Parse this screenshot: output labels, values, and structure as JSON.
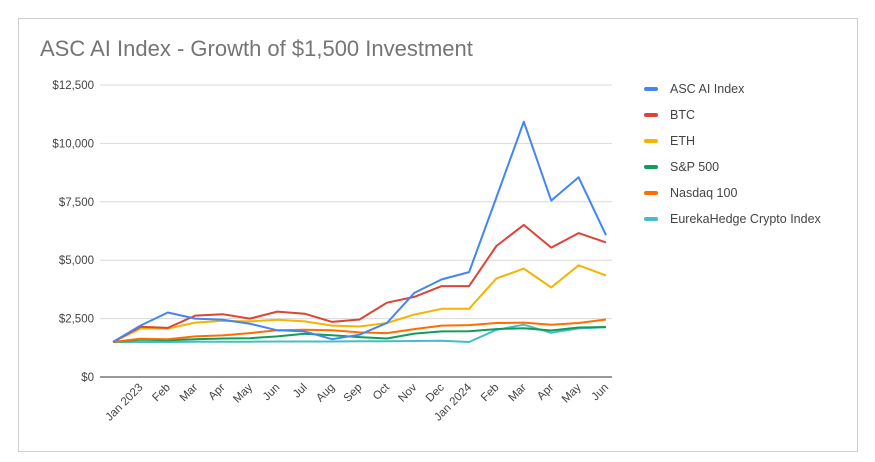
{
  "chart_data": {
    "type": "line",
    "title": "ASC AI Index - Growth of $1,500 Investment",
    "xlabel": "",
    "ylabel": "",
    "categories": [
      "",
      "Jan 2023",
      "Feb",
      "Mar",
      "Apr",
      "May",
      "Jun",
      "Jul",
      "Aug",
      "Sep",
      "Oct",
      "Nov",
      "Dec",
      "Jan 2024",
      "Feb",
      "Mar",
      "Apr",
      "May",
      "Jun"
    ],
    "ylim": [
      0,
      12500
    ],
    "yticks": [
      0,
      2500,
      5000,
      7500,
      10000,
      12500
    ],
    "ytick_labels": [
      "$0",
      "$2,500",
      "$5,000",
      "$7,500",
      "$10,000",
      "$12,500"
    ],
    "grid": true,
    "legend_position": "right",
    "series": [
      {
        "name": "ASC AI Index",
        "color": "#4285f4",
        "values": [
          1500,
          2200,
          2760,
          2500,
          2450,
          2280,
          2000,
          1950,
          1620,
          1810,
          2310,
          3600,
          4180,
          4490,
          7690,
          10930,
          7550,
          8550,
          6070
        ]
      },
      {
        "name": "BTC",
        "color": "#db4437",
        "values": [
          1500,
          2150,
          2100,
          2630,
          2690,
          2500,
          2800,
          2710,
          2360,
          2460,
          3180,
          3430,
          3890,
          3890,
          5610,
          6510,
          5540,
          6160,
          5760
        ]
      },
      {
        "name": "ETH",
        "color": "#f4b400",
        "values": [
          1500,
          2070,
          2070,
          2330,
          2400,
          2380,
          2450,
          2380,
          2200,
          2160,
          2310,
          2670,
          2920,
          2920,
          4220,
          4640,
          3830,
          4780,
          4350
        ]
      },
      {
        "name": "S&P 500",
        "color": "#0f9d58",
        "values": [
          1500,
          1600,
          1570,
          1620,
          1650,
          1660,
          1740,
          1850,
          1790,
          1710,
          1650,
          1860,
          1950,
          1960,
          2050,
          2090,
          1990,
          2120,
          2140
        ]
      },
      {
        "name": "Nasdaq 100",
        "color": "#ff6d01",
        "values": [
          1500,
          1640,
          1620,
          1740,
          1780,
          1880,
          2000,
          2020,
          2000,
          1910,
          1880,
          2050,
          2200,
          2220,
          2310,
          2330,
          2240,
          2310,
          2460
        ]
      },
      {
        "name": "EurekaHedge Crypto Index",
        "color": "#46bdc6",
        "values": [
          1500,
          1500,
          1500,
          1510,
          1510,
          1510,
          1520,
          1520,
          1520,
          1530,
          1530,
          1540,
          1550,
          1500,
          2020,
          2240,
          1890,
          2080,
          2130
        ]
      }
    ]
  }
}
